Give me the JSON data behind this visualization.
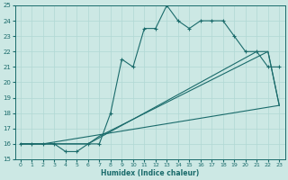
{
  "xlabel": "Humidex (Indice chaleur)",
  "xlim": [
    -0.5,
    23.5
  ],
  "ylim": [
    15,
    25
  ],
  "yticks": [
    15,
    16,
    17,
    18,
    19,
    20,
    21,
    22,
    23,
    24,
    25
  ],
  "xticks": [
    0,
    1,
    2,
    3,
    4,
    5,
    6,
    7,
    8,
    9,
    10,
    11,
    12,
    13,
    14,
    15,
    16,
    17,
    18,
    19,
    20,
    21,
    22,
    23
  ],
  "bg_color": "#cce8e4",
  "line_color": "#1a6b6b",
  "grid_color": "#b0d8d4",
  "line1_x": [
    0,
    1,
    2,
    3,
    4,
    5,
    6,
    7,
    8,
    9,
    10,
    11,
    12,
    13,
    14,
    15,
    16,
    17,
    18,
    19,
    20,
    21,
    22,
    23
  ],
  "line1_y": [
    16,
    16,
    16,
    16,
    15.5,
    15.5,
    16,
    16,
    18,
    21.5,
    21,
    23.5,
    23.5,
    25,
    24,
    23.5,
    24,
    24,
    24,
    23,
    22,
    22,
    21,
    21
  ],
  "line2_x": [
    0,
    2,
    23
  ],
  "line2_y": [
    16,
    16,
    18.5
  ],
  "line3_x": [
    0,
    2,
    6,
    21,
    22,
    23
  ],
  "line3_y": [
    16,
    16,
    16,
    22,
    22,
    18.5
  ],
  "line4_x": [
    0,
    2,
    6,
    7,
    22,
    23
  ],
  "line4_y": [
    16,
    16,
    16,
    16.5,
    22,
    18.5
  ]
}
